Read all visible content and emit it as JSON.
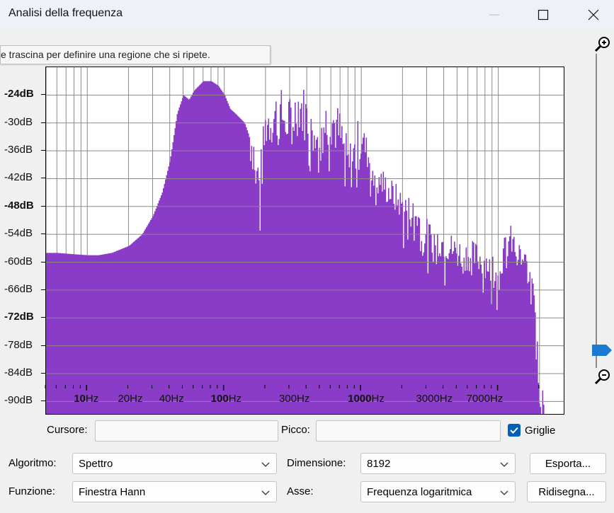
{
  "window": {
    "title": "Analisi della frequenza"
  },
  "tooltip": "e trascina per definire una regione che si ripete.",
  "colors": {
    "spectrum": "#8a3bc8",
    "grid": "#8a8a8a",
    "accent": "#005fb8"
  },
  "y_axis": {
    "labels": [
      "-24dB",
      "-30dB",
      "-36dB",
      "-42dB",
      "-48dB",
      "-54dB",
      "-60dB",
      "-66dB",
      "-72dB",
      "-78dB",
      "-84dB",
      "-90dB"
    ],
    "bold": [
      "-24dB",
      "-48dB",
      "-72dB"
    ]
  },
  "x_axis": {
    "labels": [
      {
        "text": "10",
        "unit": "Hz",
        "bold": true
      },
      {
        "text": "20Hz",
        "unit": "",
        "bold": false
      },
      {
        "text": "40Hz",
        "unit": "",
        "bold": false
      },
      {
        "text": "100",
        "unit": "Hz",
        "bold": true
      },
      {
        "text": "300Hz",
        "unit": "",
        "bold": false
      },
      {
        "text": "1000",
        "unit": "Hz",
        "bold": true
      },
      {
        "text": "3000Hz",
        "unit": "",
        "bold": false
      },
      {
        "text": "7000Hz",
        "unit": "",
        "bold": false
      }
    ]
  },
  "chart_data": {
    "type": "area",
    "xlabel": "",
    "ylabel": "",
    "x_scale": "log",
    "xlim": [
      5,
      22050
    ],
    "ylim": [
      -93,
      -18
    ],
    "grid": true,
    "series": [
      {
        "x": [
          5,
          6,
          8,
          10,
          12,
          15,
          20,
          25,
          30,
          35,
          40,
          45,
          50,
          55,
          60,
          70,
          80,
          90,
          100,
          110,
          120,
          140,
          160,
          180,
          200,
          250,
          300,
          350,
          400,
          500,
          600,
          700,
          800,
          1000,
          1200,
          1500,
          2000,
          2500,
          3000,
          4000,
          5000,
          6000,
          7000,
          8000,
          10000,
          12000,
          15000,
          18000,
          20000
        ],
        "y": [
          -58,
          -58,
          -58.3,
          -58.5,
          -58.5,
          -58,
          -56.5,
          -54,
          -50,
          -45,
          -38,
          -28,
          -24,
          -25,
          -23,
          -21,
          -21,
          -22,
          -24,
          -27,
          -28,
          -30,
          -35,
          -44,
          -30,
          -28,
          -30,
          -26,
          -29,
          -31,
          -29,
          -33,
          -40,
          -33,
          -40,
          -44,
          -48,
          -50,
          -54,
          -56,
          -58,
          -58.5,
          -59,
          -60,
          -61,
          -55,
          -60,
          -63,
          -90
        ]
      }
    ]
  },
  "controls": {
    "cursor_label": "Cursore:",
    "peak_label": "Picco:",
    "grid_label": "Griglie",
    "algorithm_label": "Algoritmo:",
    "algorithm_value": "Spettro",
    "size_label": "Dimensione:",
    "size_value": "8192",
    "function_label": "Funzione:",
    "function_value": "Finestra Hann",
    "axis_label": "Asse:",
    "axis_value": "Frequenza logaritmica",
    "export_label": "Esporta...",
    "redraw_label": "Ridisegna..."
  }
}
